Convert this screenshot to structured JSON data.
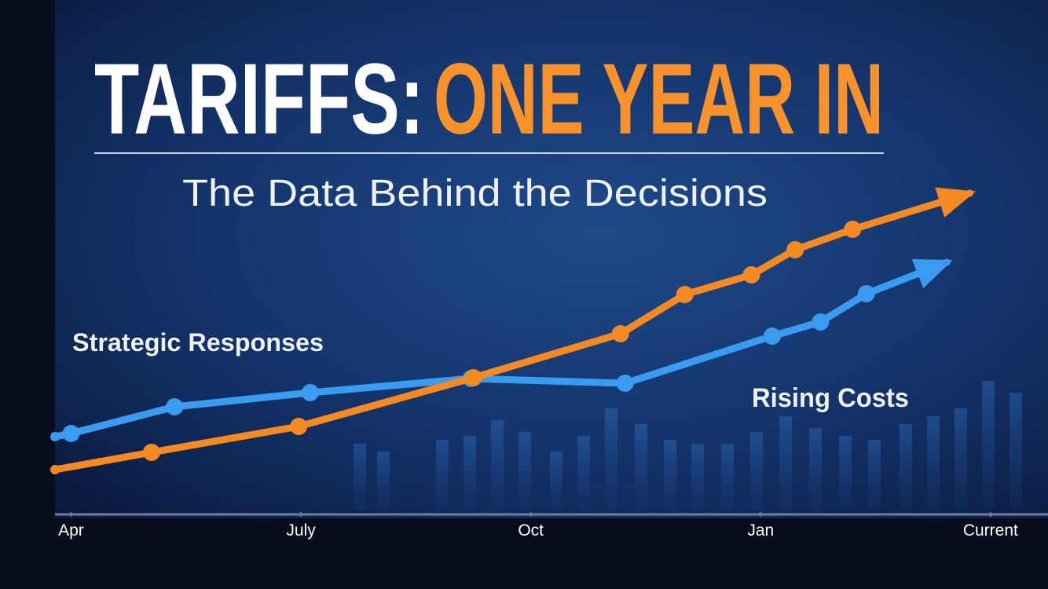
{
  "chart_data": {
    "type": "line",
    "title": "TARIFFS:",
    "title_highlight": "ONE YEAR IN",
    "subtitle": "The Data Behind the Decisions",
    "annotations": [
      "Strategic Responses",
      "Rising Costs"
    ],
    "xlim": [
      -0.07,
      4.25
    ],
    "xticks": [
      {
        "value": 0,
        "label": "Apr"
      },
      {
        "value": 1,
        "label": "July"
      },
      {
        "value": 2,
        "label": "Oct"
      },
      {
        "value": 3,
        "label": "Jan"
      },
      {
        "value": 4,
        "label": "Current"
      }
    ],
    "ylim": [
      0,
      110
    ],
    "series": [
      {
        "name": "Strategic Responses",
        "color": "#3a9cf0",
        "x": [
          -0.07,
          0,
          0.45,
          1.04,
          1.74,
          2.41,
          3.05,
          3.26,
          3.46,
          3.81
        ],
        "values": [
          23.5,
          24.5,
          33,
          37.5,
          42,
          40.5,
          55.5,
          60,
          69,
          79
        ]
      },
      {
        "name": "Rising Costs",
        "color": "#f58a22",
        "x": [
          -0.07,
          0.35,
          0.99,
          1.75,
          2.39,
          2.67,
          2.96,
          3.15,
          3.4,
          3.91
        ],
        "values": [
          13,
          18.5,
          26.75,
          42.25,
          56.25,
          68.75,
          75,
          83,
          89.5,
          101
        ]
      }
    ]
  }
}
